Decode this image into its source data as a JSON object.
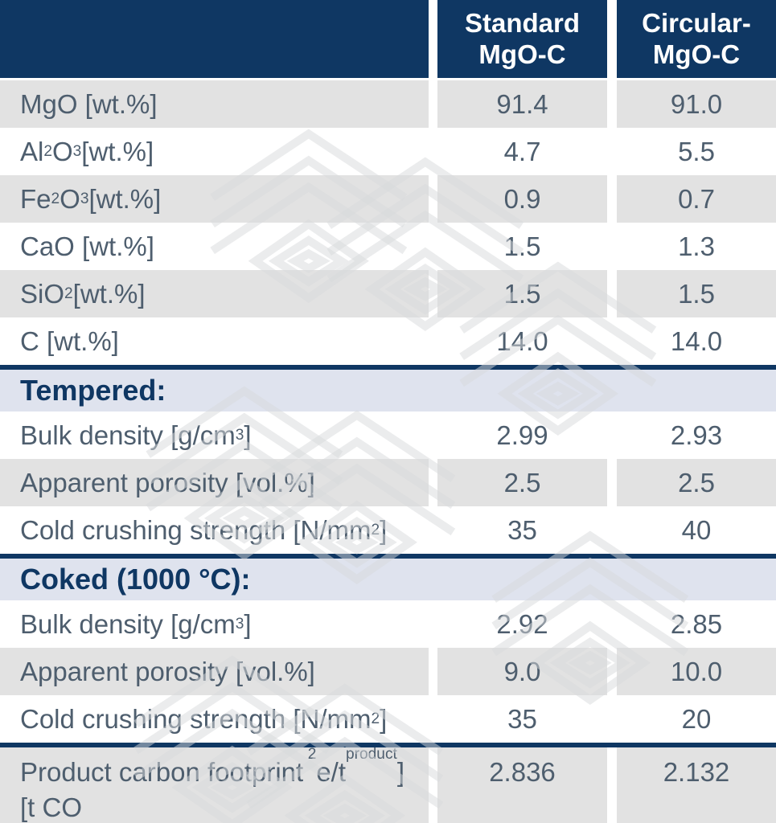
{
  "colors": {
    "navy": "#0f3763",
    "row_gray": "#e2e2e2",
    "section_band": "#dfe3ee",
    "body_text": "#4e5e6e",
    "section_text": "#0f3763",
    "header_text": "#ffffff",
    "watermark": "#d7d9dc"
  },
  "watermark_icon": "nested-chevron-diamond-watermark",
  "chart_data": {
    "type": "table",
    "corner_label": "",
    "columns": [
      "Standard MgO-C",
      "Circular-MgO-C"
    ],
    "sections": [
      {
        "type": "rows",
        "name": "chemical-composition",
        "rows": [
          {
            "label": "MgO [wt.%]",
            "values": [
              "91.4",
              "91.0"
            ]
          },
          {
            "label": "Al~2~O~3~ [wt.%]",
            "values": [
              "4.7",
              "5.5"
            ]
          },
          {
            "label": "Fe~2~O~3~ [wt.%]",
            "values": [
              "0.9",
              "0.7"
            ]
          },
          {
            "label": "CaO [wt.%]",
            "values": [
              "1.5",
              "1.3"
            ]
          },
          {
            "label": "SiO~2~ [wt.%]",
            "values": [
              "1.5",
              "1.5"
            ]
          },
          {
            "label": "C [wt.%]",
            "values": [
              "14.0",
              "14.0"
            ]
          }
        ]
      },
      {
        "type": "band",
        "name": "tempered",
        "label": "Tempered:"
      },
      {
        "type": "rows",
        "name": "tempered-properties",
        "rows": [
          {
            "label": "Bulk density [g/cm^3^]",
            "values": [
              "2.99",
              "2.93"
            ]
          },
          {
            "label": "Apparent porosity [vol.%]",
            "values": [
              "2.5",
              "2.5"
            ]
          },
          {
            "label": "Cold crushing strength [N/mm^2^]",
            "values": [
              "35",
              "40"
            ]
          }
        ]
      },
      {
        "type": "band",
        "name": "coked",
        "label": "Coked (1000 °C):"
      },
      {
        "type": "rows",
        "name": "coked-properties",
        "rows": [
          {
            "label": "Bulk density [g/cm^3^]",
            "values": [
              "2.92",
              "2.85"
            ]
          },
          {
            "label": "Apparent porosity [vol.%]",
            "values": [
              "9.0",
              "10.0"
            ]
          },
          {
            "label": "Cold crushing strength [N/mm^2^]",
            "values": [
              "35",
              "20"
            ]
          }
        ]
      },
      {
        "type": "footer",
        "name": "product-carbon-footprint",
        "rows": [
          {
            "label": "Product carbon footprint [t CO~2~e/t~product~]",
            "values": [
              "2.836",
              "2.132"
            ]
          }
        ]
      }
    ]
  }
}
